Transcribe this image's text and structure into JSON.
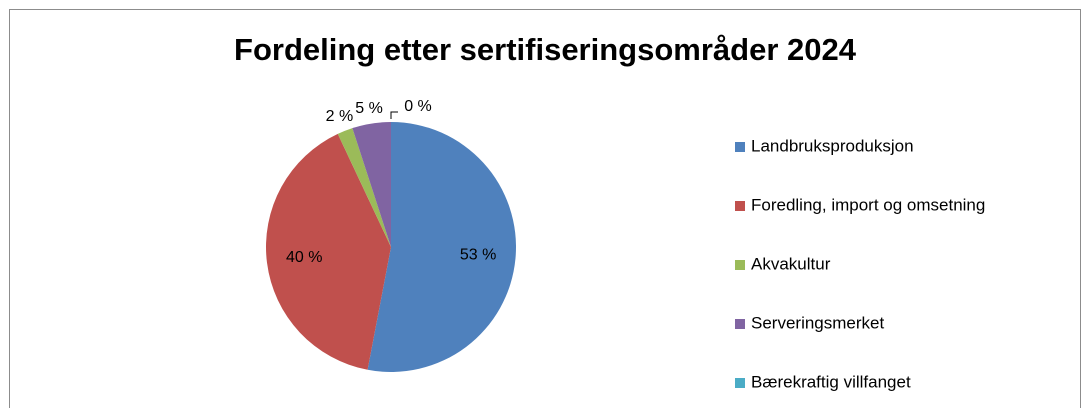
{
  "chart_data": {
    "type": "pie",
    "title": "Fordeling etter sertifiseringsområder 2024",
    "categories": [
      "Landbruksproduksjon",
      "Foredling, import og omsetning",
      "Akvakultur",
      "Serveringsmerket",
      "Bærekraftig villfanget"
    ],
    "values": [
      53,
      40,
      2,
      5,
      0
    ],
    "value_labels": [
      "53 %",
      "40 %",
      "2 %",
      "5 %",
      "0 %"
    ],
    "colors": [
      "#4f81bd",
      "#c0504d",
      "#9bbb59",
      "#8064a2",
      "#4bacc6"
    ],
    "legend": "right"
  }
}
